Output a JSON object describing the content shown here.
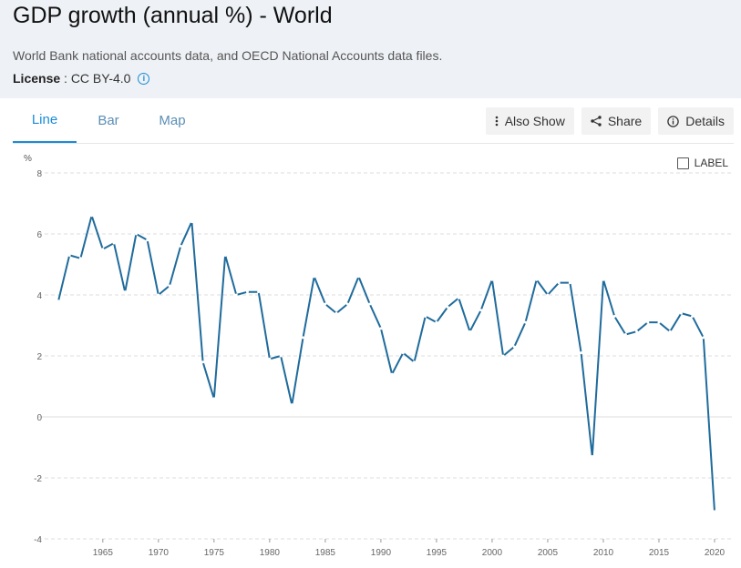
{
  "header": {
    "title": "GDP growth (annual %) - World",
    "source": "World Bank national accounts data, and OECD National Accounts data files.",
    "license_label": "License",
    "license_sep": " : ",
    "license_value": "CC BY-4.0"
  },
  "tabs": [
    {
      "label": "Line",
      "active": true
    },
    {
      "label": "Bar",
      "active": false
    },
    {
      "label": "Map",
      "active": false
    }
  ],
  "actions": {
    "also_show": "Also Show",
    "share": "Share",
    "details": "Details"
  },
  "label_toggle": "LABEL",
  "colors": {
    "accent": "#1a8cd8",
    "line": "#1f6b9c",
    "grid": "#dddddd"
  },
  "chart_data": {
    "type": "line",
    "ylabel": "%",
    "ylim": [
      -4,
      8
    ],
    "yticks": [
      -4,
      -2,
      0,
      2,
      4,
      6,
      8
    ],
    "xlim": [
      1961,
      2020
    ],
    "xticks": [
      1965,
      1970,
      1975,
      1980,
      1985,
      1990,
      1995,
      2000,
      2005,
      2010,
      2015,
      2020
    ],
    "grid": true,
    "legend": "none",
    "series": [
      {
        "x": [
          1961,
          1962,
          1963,
          1964,
          1965,
          1966,
          1967,
          1968,
          1969,
          1970,
          1971,
          1972,
          1973,
          1974,
          1975,
          1976,
          1977,
          1978,
          1979,
          1980,
          1981,
          1982,
          1983,
          1984,
          1985,
          1986,
          1987,
          1988,
          1989,
          1990,
          1991,
          1992,
          1993,
          1994,
          1995,
          1996,
          1997,
          1998,
          1999,
          2000,
          2001,
          2002,
          2003,
          2004,
          2005,
          2006,
          2007,
          2008,
          2009,
          2010,
          2011,
          2012,
          2013,
          2014,
          2015,
          2016,
          2017,
          2018,
          2019,
          2020
        ],
        "values": [
          3.8,
          5.3,
          5.2,
          6.6,
          5.5,
          5.7,
          4.1,
          6.0,
          5.8,
          4.0,
          4.3,
          5.6,
          6.4,
          1.8,
          0.6,
          5.3,
          4.0,
          4.1,
          4.1,
          1.9,
          2.0,
          0.4,
          2.6,
          4.6,
          3.7,
          3.4,
          3.7,
          4.6,
          3.7,
          2.9,
          1.4,
          2.1,
          1.8,
          3.3,
          3.1,
          3.6,
          3.9,
          2.8,
          3.5,
          4.5,
          2.0,
          2.3,
          3.1,
          4.5,
          4.0,
          4.4,
          4.4,
          2.1,
          -1.3,
          4.5,
          3.3,
          2.7,
          2.8,
          3.1,
          3.1,
          2.8,
          3.4,
          3.3,
          2.6,
          -3.1
        ]
      }
    ]
  }
}
